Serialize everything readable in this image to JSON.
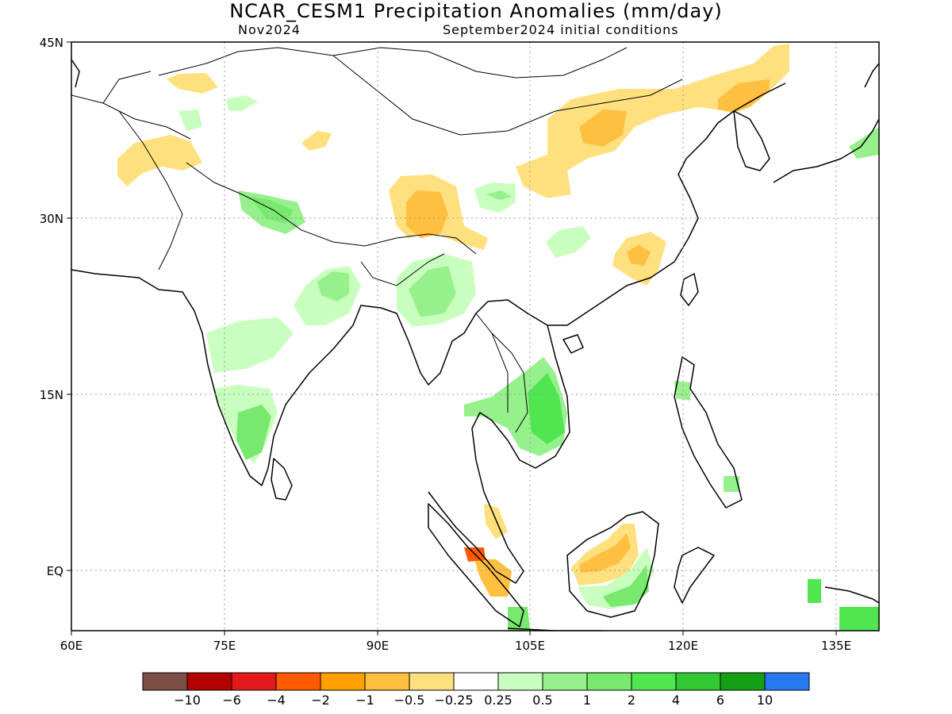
{
  "header": {
    "title": "NCAR_CESM1 Precipitation Anomalies (mm/day)",
    "valid_month": "Nov2024",
    "init": "September2024 initial conditions"
  },
  "axes": {
    "lat_ticks": [
      "45N",
      "30N",
      "15N",
      "EQ"
    ],
    "lon_ticks": [
      "60E",
      "75E",
      "90E",
      "105E",
      "120E",
      "135E"
    ]
  },
  "colorbar": {
    "colors": [
      "#7b4f46",
      "#b30000",
      "#e31a1c",
      "#ff5a00",
      "#ff9f00",
      "#ffbf40",
      "#ffe07f",
      "#ffffff",
      "#c8ffbe",
      "#96f08c",
      "#78e86e",
      "#50e650",
      "#32c832",
      "#14a014",
      "#2878f0"
    ],
    "labels": [
      "−10",
      "−6",
      "−4",
      "−2",
      "−1",
      "−0.5",
      "−0.25",
      "0.25",
      "0.5",
      "1",
      "2",
      "4",
      "6",
      "10"
    ]
  },
  "colors": {
    "dry_light": "#ffe07f",
    "dry_mid": "#ffbf40",
    "dry_strong": "#ff9f00",
    "dry_vstrong": "#ff5a00",
    "wet_light": "#c8ffbe",
    "wet_mid": "#96f08c",
    "wet_strong": "#50e650",
    "wet_vstrong": "#32c832"
  }
}
